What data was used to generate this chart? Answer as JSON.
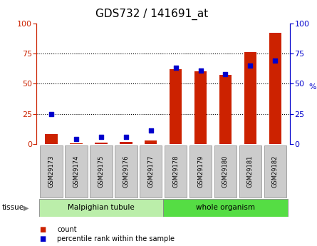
{
  "title": "GDS732 / 141691_at",
  "samples": [
    "GSM29173",
    "GSM29174",
    "GSM29175",
    "GSM29176",
    "GSM29177",
    "GSM29178",
    "GSM29179",
    "GSM29180",
    "GSM29181",
    "GSM29182"
  ],
  "count_values": [
    8,
    0.5,
    1,
    1.5,
    3,
    62,
    60,
    57,
    76,
    92
  ],
  "percentile_values": [
    25,
    4,
    6,
    6,
    11,
    63,
    61,
    58,
    65,
    69
  ],
  "tissue_groups": [
    {
      "label": "Malpighian tubule",
      "start": 0,
      "end": 5,
      "color": "#bbeeaa"
    },
    {
      "label": "whole organism",
      "start": 5,
      "end": 10,
      "color": "#55dd44"
    }
  ],
  "left_axis_color": "#cc2200",
  "right_axis_color": "#0000cc",
  "bar_color": "#cc2200",
  "dot_color": "#0000cc",
  "ylim": [
    0,
    100
  ],
  "yticks": [
    0,
    25,
    50,
    75,
    100
  ],
  "title_fontsize": 11,
  "right_axis_label": "%",
  "tissue_label": "tissue",
  "legend_count": "count",
  "legend_percentile": "percentile rank within the sample",
  "sample_box_color": "#cccccc",
  "sample_box_edge": "#999999"
}
